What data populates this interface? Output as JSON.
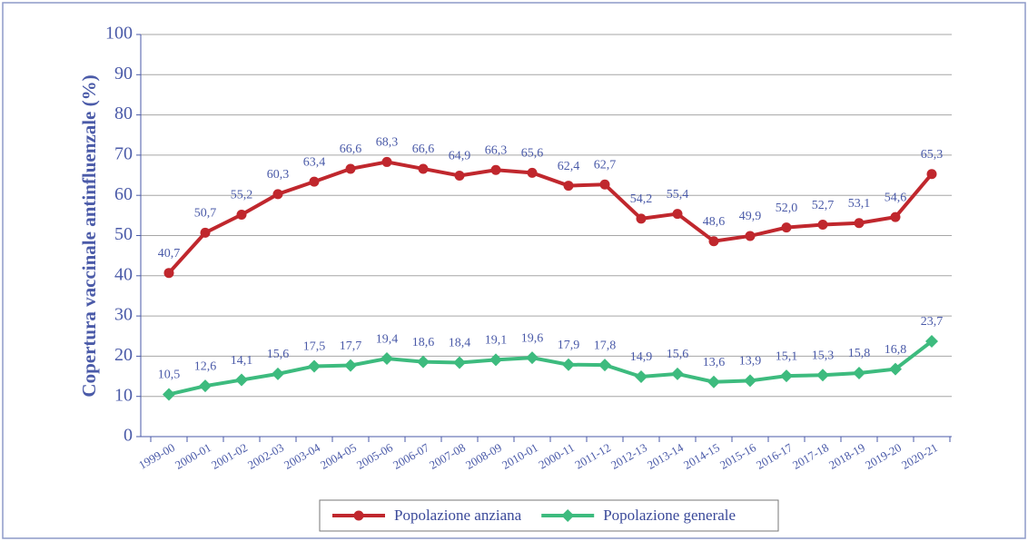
{
  "chart_data": {
    "type": "line",
    "y_label": "Copertura vaccinale antinfluenzale (%)",
    "categories": [
      "1999-00",
      "2000-01",
      "2001-02",
      "2002-03",
      "2003-04",
      "2004-05",
      "2005-06",
      "2006-07",
      "2007-08",
      "2008-09",
      "2010-01",
      "2000-11",
      "2011-12",
      "2012-13",
      "2013-14",
      "2014-15",
      "2015-16",
      "2016-17",
      "2017-18",
      "2018-19",
      "2019-20",
      "2020-21"
    ],
    "series": [
      {
        "name": "Popolazione anziana",
        "color": "#c0272d",
        "marker": "circle",
        "values": [
          40.7,
          50.7,
          55.2,
          60.3,
          63.4,
          66.6,
          68.3,
          66.6,
          64.9,
          66.3,
          65.6,
          62.4,
          62.7,
          54.2,
          55.4,
          48.6,
          49.9,
          52.0,
          52.7,
          53.1,
          54.6,
          65.3
        ],
        "value_labels": [
          "40,7",
          "50,7",
          "55,2",
          "60,3",
          "63,4",
          "66,6",
          "68,3",
          "66,6",
          "64,9",
          "66,3",
          "65,6",
          "62,4",
          "62,7",
          "54,2",
          "55,4",
          "48,6",
          "49,9",
          "52,0",
          "52,7",
          "53,1",
          "54,6",
          "65,3"
        ]
      },
      {
        "name": "Popolazione generale",
        "color": "#3dbb7e",
        "marker": "diamond",
        "values": [
          10.5,
          12.6,
          14.1,
          15.6,
          17.5,
          17.7,
          19.4,
          18.6,
          18.4,
          19.1,
          19.6,
          17.9,
          17.8,
          14.9,
          15.6,
          13.6,
          13.9,
          15.1,
          15.3,
          15.8,
          16.8,
          23.7
        ],
        "value_labels": [
          "10,5",
          "12,6",
          "14,1",
          "15,6",
          "17,5",
          "17,7",
          "19,4",
          "18,6",
          "18,4",
          "19,1",
          "19,6",
          "17,9",
          "17,8",
          "14,9",
          "15,6",
          "13,6",
          "13,9",
          "15,1",
          "15,3",
          "15,8",
          "16,8",
          "23,7"
        ]
      }
    ],
    "ylim": [
      0,
      100
    ],
    "yticks": [
      0,
      10,
      20,
      30,
      40,
      50,
      60,
      70,
      80,
      90,
      100
    ],
    "grid": true,
    "legend": "bottom"
  }
}
